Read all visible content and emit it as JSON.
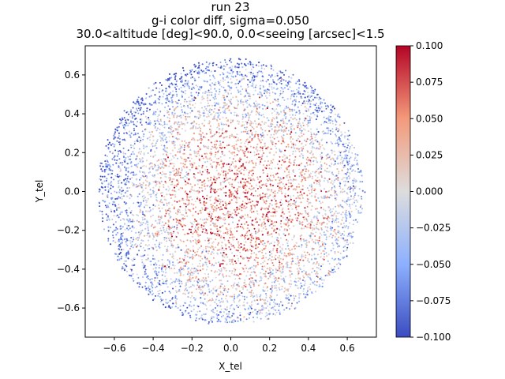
{
  "chart_data": {
    "type": "scatter",
    "title_lines": [
      "run 23",
      "g-i color diff,  sigma=0.050",
      "30.0<altitude [deg]<90.0, 0.0<seeing [arcsec]<1.5"
    ],
    "xlabel": "X_tel",
    "ylabel": "Y_tel",
    "xlim": [
      -0.75,
      0.75
    ],
    "ylim": [
      -0.75,
      0.75
    ],
    "xticks": [
      -0.6,
      -0.4,
      -0.2,
      0.0,
      0.2,
      0.4,
      0.6
    ],
    "yticks": [
      -0.6,
      -0.4,
      -0.2,
      0.0,
      0.2,
      0.4,
      0.6
    ],
    "xtick_labels": [
      "−0.6",
      "−0.4",
      "−0.2",
      "0.0",
      "0.2",
      "0.4",
      "0.6"
    ],
    "ytick_labels": [
      "−0.6",
      "−0.4",
      "−0.2",
      "0.0",
      "0.2",
      "0.4",
      "0.6"
    ],
    "grid": false,
    "colormap": "coolwarm",
    "colorbar": {
      "range": [
        -0.1,
        0.1
      ],
      "ticks": [
        -0.1,
        -0.075,
        -0.05,
        -0.025,
        0.0,
        0.025,
        0.05,
        0.075,
        0.1
      ],
      "tick_labels": [
        "−0.100",
        "−0.075",
        "−0.050",
        "−0.025",
        "0.000",
        "0.025",
        "0.050",
        "0.075",
        "0.100"
      ]
    },
    "distribution": {
      "shape": "disk",
      "radius": 0.68,
      "n_points_approx": 9000,
      "center_value": 0.05,
      "edge_value": -0.07
    },
    "points_sample": [
      {
        "x": 0.0,
        "y": 0.0,
        "c": 0.06
      },
      {
        "x": 0.1,
        "y": -0.3,
        "c": 0.05
      },
      {
        "x": 0.45,
        "y": -0.15,
        "c": 0.08
      },
      {
        "x": -0.55,
        "y": 0.3,
        "c": -0.09
      },
      {
        "x": -0.3,
        "y": 0.55,
        "c": -0.08
      },
      {
        "x": 0.5,
        "y": 0.35,
        "c": 0.0
      },
      {
        "x": -0.6,
        "y": -0.2,
        "c": -0.07
      },
      {
        "x": 0.0,
        "y": -0.65,
        "c": 0.03
      }
    ],
    "colors": {
      "axis": "#000000",
      "background": "#ffffff"
    }
  }
}
